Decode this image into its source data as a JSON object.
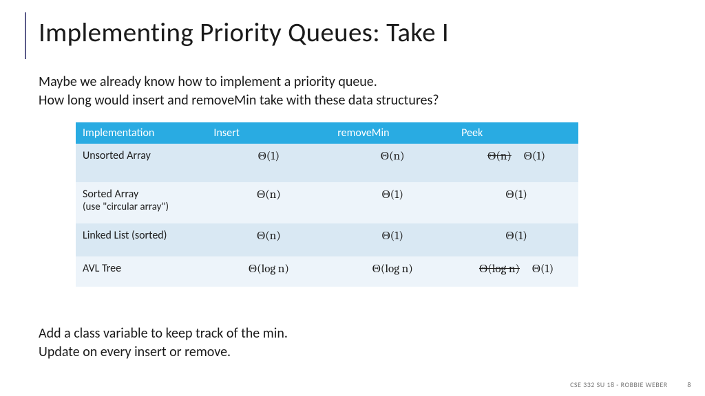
{
  "title": "Implementing Priority Queues: Take I",
  "intro_line1": "Maybe we already know how to implement a priority queue.",
  "intro_line2": "How long would insert and removeMin take with these data structures?",
  "columns": [
    "Implementation",
    "Insert",
    "removeMin",
    "Peek"
  ],
  "rows": [
    {
      "impl": "Unsorted Array",
      "impl_sub": "",
      "insert": "Θ(1)",
      "remove": "Θ(n)",
      "peek_strike": "Θ(n)",
      "peek": "Θ(1)"
    },
    {
      "impl": "Sorted Array",
      "impl_sub": "(use \"circular array\")",
      "insert": "Θ(n)",
      "remove": "Θ(1)",
      "peek_strike": "",
      "peek": "Θ(1)"
    },
    {
      "impl": "Linked List (sorted)",
      "impl_sub": "",
      "insert": "Θ(n)",
      "remove": "Θ(1)",
      "peek_strike": "",
      "peek": "Θ(1)"
    },
    {
      "impl": "AVL Tree",
      "impl_sub": "",
      "insert": "Θ(log n)",
      "remove": "Θ(log n)",
      "peek_strike": "Θ(log n)",
      "peek": "Θ(1)"
    }
  ],
  "outro_line1": "Add a class variable to keep track of the min.",
  "outro_line2": "Update on every insert or remove.",
  "footer_text": "CSE 332 SU 18 - ROBBIE WEBER",
  "footer_page": "8",
  "colors": {
    "header_bg": "#29abe2",
    "row_even": "#d9e8f3",
    "row_odd": "#edf4fa",
    "accent": "#5b5b8a"
  }
}
